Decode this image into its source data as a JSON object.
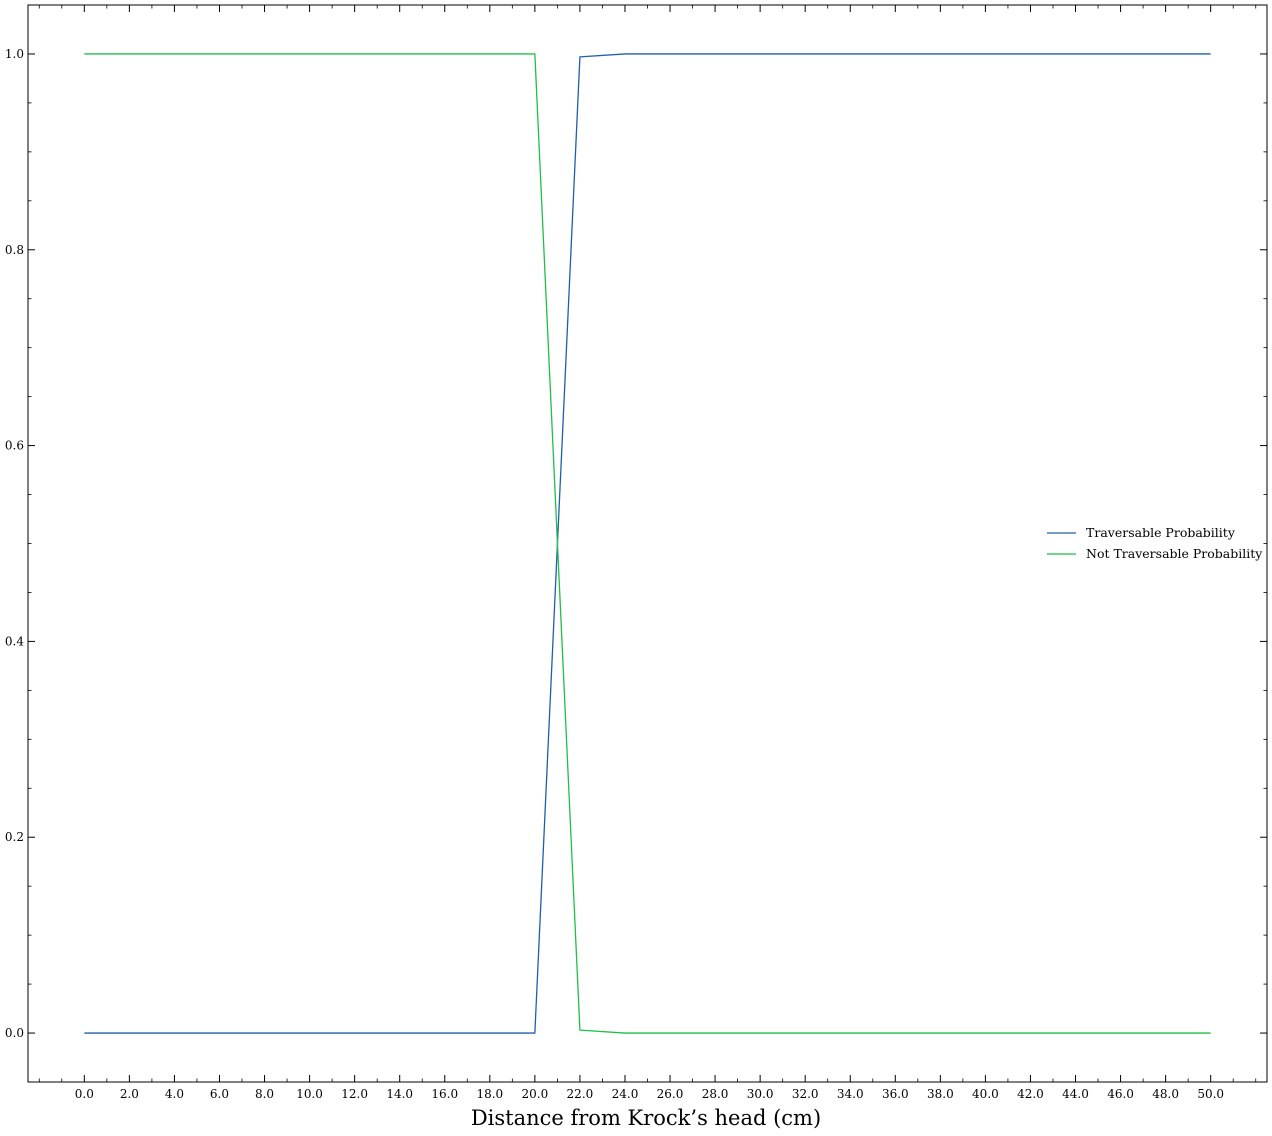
{
  "chart_data": {
    "type": "line",
    "title": "",
    "xlabel": "Distance from Krock’s head (cm)",
    "ylabel": "",
    "xlim": [
      -2.5,
      52.5
    ],
    "ylim": [
      -0.05,
      1.05
    ],
    "grid": false,
    "legend_position": "center-right",
    "x_ticks": [
      "0.0",
      "2.0",
      "4.0",
      "6.0",
      "8.0",
      "10.0",
      "12.0",
      "14.0",
      "16.0",
      "18.0",
      "20.0",
      "22.0",
      "24.0",
      "26.0",
      "28.0",
      "30.0",
      "32.0",
      "34.0",
      "36.0",
      "38.0",
      "40.0",
      "42.0",
      "44.0",
      "46.0",
      "48.0",
      "50.0"
    ],
    "y_ticks": [
      "0.0",
      "0.2",
      "0.4",
      "0.6",
      "0.8",
      "1.0"
    ],
    "x": [
      0,
      2,
      4,
      6,
      8,
      10,
      12,
      14,
      16,
      18,
      20,
      22,
      24,
      26,
      28,
      30,
      32,
      34,
      36,
      38,
      40,
      42,
      44,
      46,
      48,
      50
    ],
    "series": [
      {
        "name": "Traversable Probability",
        "color": "#1f5fa8",
        "values": [
          0.0,
          0.0,
          0.0,
          0.0,
          0.0,
          0.0,
          0.0,
          0.0,
          0.0,
          0.0,
          0.0,
          0.997,
          1.0,
          1.0,
          1.0,
          1.0,
          1.0,
          1.0,
          1.0,
          1.0,
          1.0,
          1.0,
          1.0,
          1.0,
          1.0,
          1.0
        ]
      },
      {
        "name": "Not Traversable Probability",
        "color": "#1fbf4a",
        "values": [
          1.0,
          1.0,
          1.0,
          1.0,
          1.0,
          1.0,
          1.0,
          1.0,
          1.0,
          1.0,
          1.0,
          0.003,
          0.0,
          0.0,
          0.0,
          0.0,
          0.0,
          0.0,
          0.0,
          0.0,
          0.0,
          0.0,
          0.0,
          0.0,
          0.0,
          0.0
        ]
      }
    ]
  }
}
